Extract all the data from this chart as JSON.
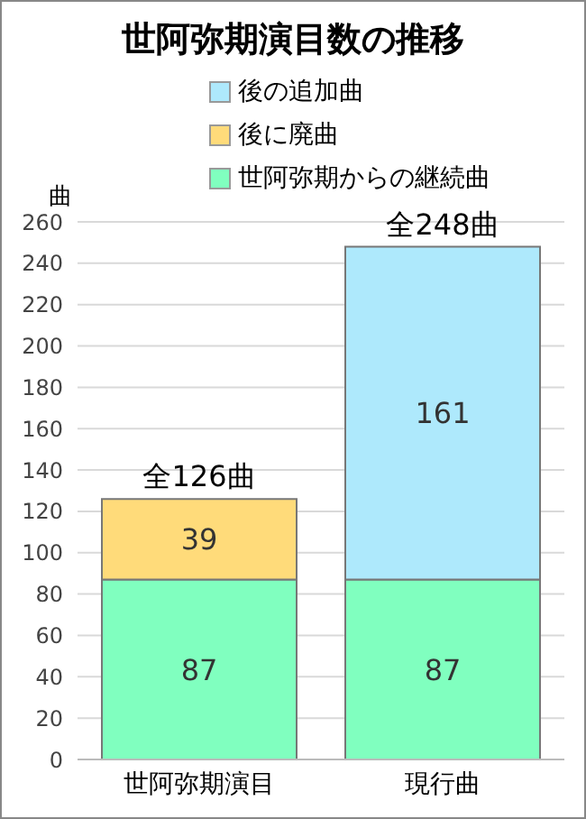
{
  "chart_data": {
    "type": "bar",
    "title": "世阿弥期演目数の推移",
    "ylabel": "曲",
    "categories": [
      "世阿弥期演目",
      "現行曲"
    ],
    "stacked": true,
    "series": [
      {
        "name": "世阿弥期からの継続曲",
        "color": "#80ffbf",
        "values": [
          87,
          87
        ]
      },
      {
        "name": "後に廃曲",
        "color": "#ffdb7a",
        "values": [
          39,
          null
        ]
      },
      {
        "name": "後の追加曲",
        "color": "#aee9fc",
        "values": [
          null,
          161
        ]
      }
    ],
    "totals": [
      "全126曲",
      "全248曲"
    ],
    "data_labels": true,
    "ylim": [
      0,
      260
    ],
    "yticks": [
      0,
      20,
      40,
      60,
      80,
      100,
      120,
      140,
      160,
      180,
      200,
      220,
      240,
      260
    ],
    "grid": "y",
    "legend": "top"
  }
}
